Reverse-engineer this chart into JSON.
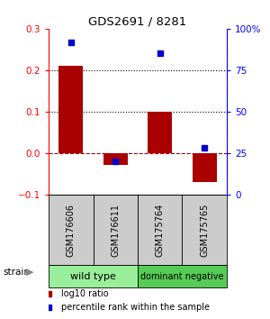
{
  "title": "GDS2691 / 8281",
  "samples": [
    "GSM176606",
    "GSM176611",
    "GSM175764",
    "GSM175765"
  ],
  "log10_ratio": [
    0.21,
    -0.03,
    0.1,
    -0.07
  ],
  "percentile_rank": [
    92,
    20,
    85,
    28
  ],
  "groups": [
    {
      "label": "wild type",
      "samples": [
        0,
        1
      ],
      "color": "#99ee99"
    },
    {
      "label": "dominant negative",
      "samples": [
        2,
        3
      ],
      "color": "#55cc55"
    }
  ],
  "bar_color": "#aa0000",
  "dot_color": "#0000cc",
  "ylim_left": [
    -0.1,
    0.3
  ],
  "ylim_right": [
    0,
    100
  ],
  "yticks_left": [
    -0.1,
    0.0,
    0.1,
    0.2,
    0.3
  ],
  "yticks_right": [
    0,
    25,
    50,
    75,
    100
  ],
  "background_color": "#ffffff",
  "strain_label": "strain",
  "legend_items": [
    {
      "color": "#aa0000",
      "label": "log10 ratio"
    },
    {
      "color": "#0000cc",
      "label": "percentile rank within the sample"
    }
  ]
}
